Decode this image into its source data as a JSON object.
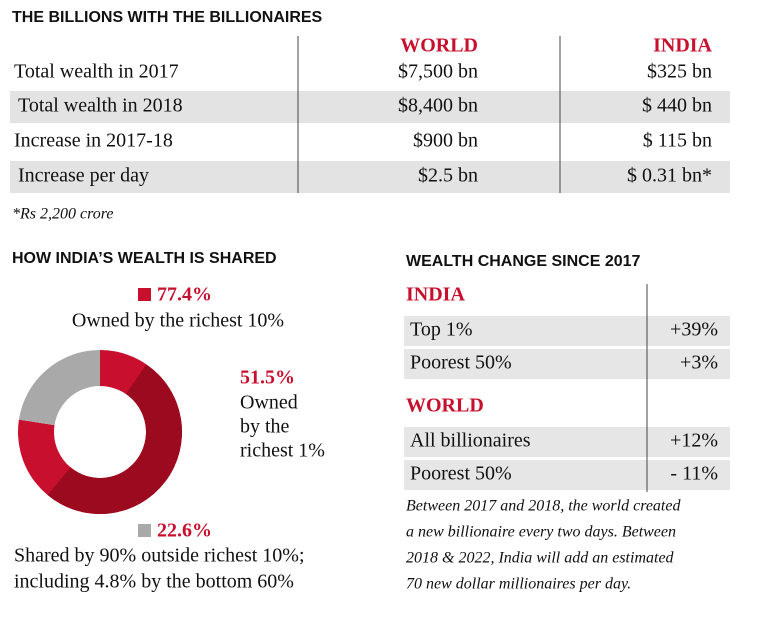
{
  "table": {
    "title": "THE BILLIONS WITH THE BILLIONAIRES",
    "columns": [
      "WORLD",
      "INDIA"
    ],
    "rows": [
      [
        "Total wealth in 2017",
        "$7,500 bn",
        "$325 bn"
      ],
      [
        "Total wealth in 2018",
        "$8,400 bn",
        "$ 440 bn"
      ],
      [
        "Increase in 2017-18",
        "$900 bn",
        "$ 115 bn"
      ],
      [
        "Increase per day",
        "$2.5 bn",
        "$ 0.31 bn*"
      ]
    ],
    "footnote": "*Rs 2,200 crore"
  },
  "share": {
    "title": "HOW INDIA’S WEALTH IS SHARED",
    "segments": [
      {
        "value": 77.4,
        "label": "77.4%",
        "text_lines": [
          "Owned by the richest 10%"
        ],
        "color": "#c8102e"
      },
      {
        "value": 51.5,
        "label": "51.5%",
        "text_lines": [
          "Owned",
          "by the",
          "richest 1%"
        ],
        "color": "#9b0a1f"
      },
      {
        "value": 22.6,
        "label": "22.6%",
        "text_lines": [
          "Shared by 90% outside richest 10%;",
          "including 4.8% by the bottom 60%"
        ],
        "color": "#a9a9a9"
      }
    ]
  },
  "change": {
    "title": "WEALTH CHANGE SINCE 2017",
    "groups": [
      {
        "name": "INDIA",
        "rows": [
          [
            "Top 1%",
            "+39%"
          ],
          [
            "Poorest 50%",
            "+3%"
          ]
        ]
      },
      {
        "name": "WORLD",
        "rows": [
          [
            "All billionaires",
            "+12%"
          ],
          [
            "Poorest 50%",
            "- 11%"
          ]
        ]
      }
    ],
    "note_lines": [
      "Between 2017 and 2018, the world created",
      "a new billionaire every two days. Between",
      "2018 & 2022, India will add an estimated",
      "70 new dollar millionaires per day."
    ]
  }
}
